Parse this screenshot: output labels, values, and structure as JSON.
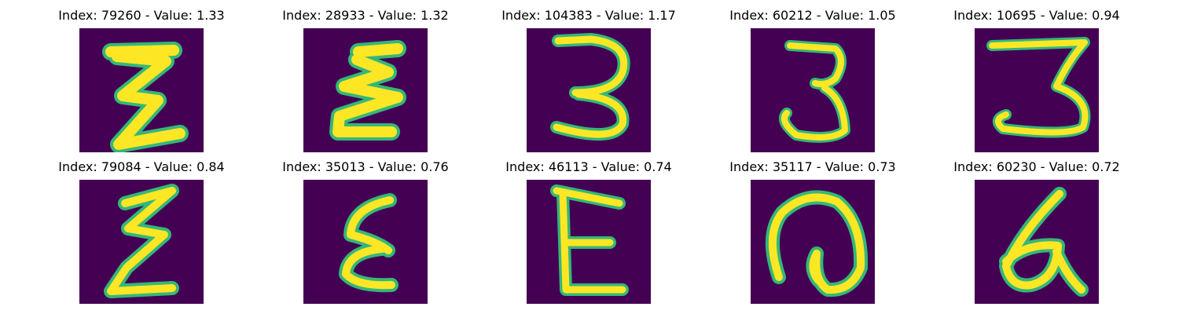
{
  "colors": {
    "background": "#440154",
    "stroke_core": "#fde725",
    "stroke_edge": "#35b779"
  },
  "grid": [
    {
      "title": "Index: 79260 - Value: 1.33",
      "glyph": "E"
    },
    {
      "title": "Index: 28933 - Value: 1.32",
      "glyph": "E"
    },
    {
      "title": "Index: 104383 - Value: 1.17",
      "glyph": "3"
    },
    {
      "title": "Index: 60212 - Value: 1.05",
      "glyph": "3"
    },
    {
      "title": "Index: 10695 - Value: 0.94",
      "glyph": "3"
    },
    {
      "title": "Index: 79084 - Value: 0.84",
      "glyph": "E"
    },
    {
      "title": "Index: 35013 - Value: 0.76",
      "glyph": "E"
    },
    {
      "title": "Index: 46113 - Value: 0.74",
      "glyph": "E"
    },
    {
      "title": "Index: 35117 - Value: 0.73",
      "glyph": "@"
    },
    {
      "title": "Index: 60230 - Value: 0.72",
      "glyph": "a"
    }
  ]
}
